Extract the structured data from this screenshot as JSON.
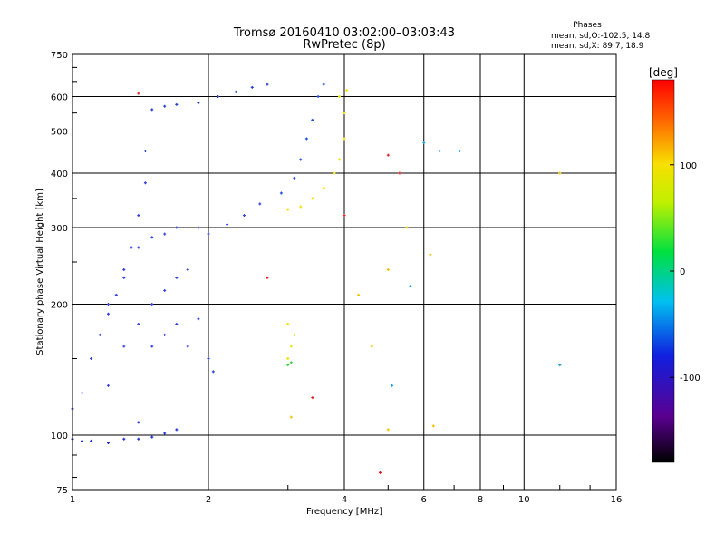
{
  "chart_data": {
    "type": "scatter",
    "title": "Tromsø 20160410 03:02:00–03:03:43",
    "subtitle": "RwPretec (8p)",
    "xlabel": "Frequency [MHz]",
    "ylabel": "Stationary phase Virtual Height [km]",
    "x_scale": "log",
    "y_scale": "log",
    "xlim": [
      1,
      16
    ],
    "ylim": [
      75,
      750
    ],
    "xticks": [
      1,
      2,
      4,
      6,
      8,
      10,
      16
    ],
    "xtick_labels": [
      "1",
      "2",
      "4",
      "6",
      "8",
      "10",
      "16"
    ],
    "yticks": [
      75,
      100,
      200,
      300,
      400,
      500,
      600,
      750
    ],
    "ytick_labels": [
      "75",
      "100",
      "200",
      "300",
      "400",
      "500",
      "600",
      "750"
    ],
    "grid": true,
    "colorbar": {
      "label": "[deg]",
      "range": [
        -180,
        180
      ],
      "ticks": [
        -100,
        0,
        100
      ],
      "tick_labels": [
        "-100",
        "0",
        "100"
      ],
      "colormap": "rainbow (black-purple-blue-cyan-green-yellow-red)"
    },
    "stats": {
      "heading": "Phases",
      "line1": "mean, sd,O:-102.5, 14.8",
      "line2": "mean, sd,X:  89.7, 18.9"
    },
    "series": [
      {
        "color": "#2030d0",
        "points": [
          [
            1.0,
            98
          ],
          [
            1.05,
            97
          ],
          [
            1.1,
            97
          ],
          [
            1.2,
            96
          ],
          [
            1.3,
            98
          ],
          [
            1.4,
            98
          ],
          [
            1.5,
            99
          ],
          [
            1.6,
            101
          ],
          [
            1.7,
            103
          ],
          [
            1.4,
            107
          ]
        ]
      },
      {
        "color": "#3040e0",
        "points": [
          [
            1.0,
            115
          ],
          [
            1.05,
            125
          ],
          [
            1.1,
            150
          ],
          [
            1.15,
            170
          ],
          [
            1.2,
            190
          ],
          [
            1.25,
            210
          ],
          [
            1.3,
            240
          ],
          [
            1.35,
            270
          ],
          [
            1.4,
            320
          ],
          [
            1.45,
            380
          ],
          [
            1.45,
            450
          ]
        ]
      },
      {
        "color": "#3545e0",
        "points": [
          [
            1.2,
            130
          ],
          [
            1.3,
            160
          ],
          [
            1.4,
            180
          ],
          [
            1.5,
            200
          ],
          [
            1.6,
            215
          ],
          [
            1.7,
            230
          ],
          [
            1.8,
            240
          ],
          [
            1.2,
            200
          ],
          [
            1.3,
            230
          ],
          [
            1.4,
            270
          ],
          [
            1.5,
            285
          ],
          [
            1.6,
            290
          ],
          [
            1.7,
            300
          ],
          [
            1.9,
            300
          ],
          [
            2.0,
            290
          ],
          [
            2.2,
            305
          ],
          [
            2.4,
            320
          ],
          [
            2.6,
            340
          ]
        ]
      },
      {
        "color": "#2540d0",
        "points": [
          [
            1.5,
            560
          ],
          [
            1.6,
            570
          ],
          [
            1.7,
            575
          ],
          [
            1.9,
            580
          ],
          [
            2.1,
            600
          ],
          [
            2.3,
            615
          ],
          [
            2.5,
            630
          ],
          [
            2.7,
            640
          ]
        ]
      },
      {
        "color": "#2050e0",
        "points": [
          [
            2.9,
            360
          ],
          [
            3.1,
            390
          ],
          [
            3.2,
            430
          ],
          [
            3.3,
            480
          ],
          [
            3.4,
            530
          ],
          [
            3.5,
            600
          ],
          [
            3.6,
            640
          ]
        ]
      },
      {
        "color": "#f0e000",
        "points": [
          [
            3.0,
            330
          ],
          [
            3.2,
            335
          ],
          [
            3.4,
            350
          ],
          [
            3.6,
            370
          ],
          [
            3.8,
            400
          ],
          [
            3.9,
            430
          ],
          [
            4.0,
            480
          ],
          [
            4.0,
            550
          ],
          [
            4.05,
            620
          ],
          [
            3.9,
            600
          ]
        ]
      },
      {
        "color": "#f0e000",
        "points": [
          [
            3.0,
            150
          ],
          [
            3.05,
            160
          ],
          [
            3.1,
            170
          ],
          [
            3.0,
            180
          ]
        ]
      },
      {
        "color": "#40d040",
        "points": [
          [
            3.0,
            145
          ],
          [
            3.05,
            147
          ]
        ]
      },
      {
        "color": "#3040e0",
        "points": [
          [
            1.5,
            160
          ],
          [
            1.6,
            170
          ],
          [
            1.7,
            180
          ],
          [
            1.8,
            160
          ],
          [
            2.0,
            150
          ],
          [
            2.05,
            140
          ],
          [
            1.9,
            185
          ]
        ]
      },
      {
        "color": "#e02020",
        "points": [
          [
            1.4,
            610
          ],
          [
            4.0,
            320
          ],
          [
            4.8,
            82
          ],
          [
            5.0,
            440
          ],
          [
            5.3,
            400
          ],
          [
            2.7,
            230
          ],
          [
            3.4,
            122
          ]
        ]
      },
      {
        "color": "#f0c000",
        "points": [
          [
            4.3,
            210
          ],
          [
            4.6,
            160
          ],
          [
            5.0,
            240
          ],
          [
            5.5,
            300
          ],
          [
            6.2,
            260
          ],
          [
            6.3,
            105
          ],
          [
            12.0,
            400
          ],
          [
            12.0,
            145
          ],
          [
            5.0,
            103
          ],
          [
            3.05,
            110
          ]
        ]
      },
      {
        "color": "#20a0f0",
        "points": [
          [
            5.1,
            130
          ],
          [
            5.6,
            220
          ],
          [
            6.0,
            470
          ],
          [
            6.5,
            450
          ],
          [
            7.2,
            450
          ],
          [
            12.0,
            145
          ]
        ]
      }
    ]
  }
}
